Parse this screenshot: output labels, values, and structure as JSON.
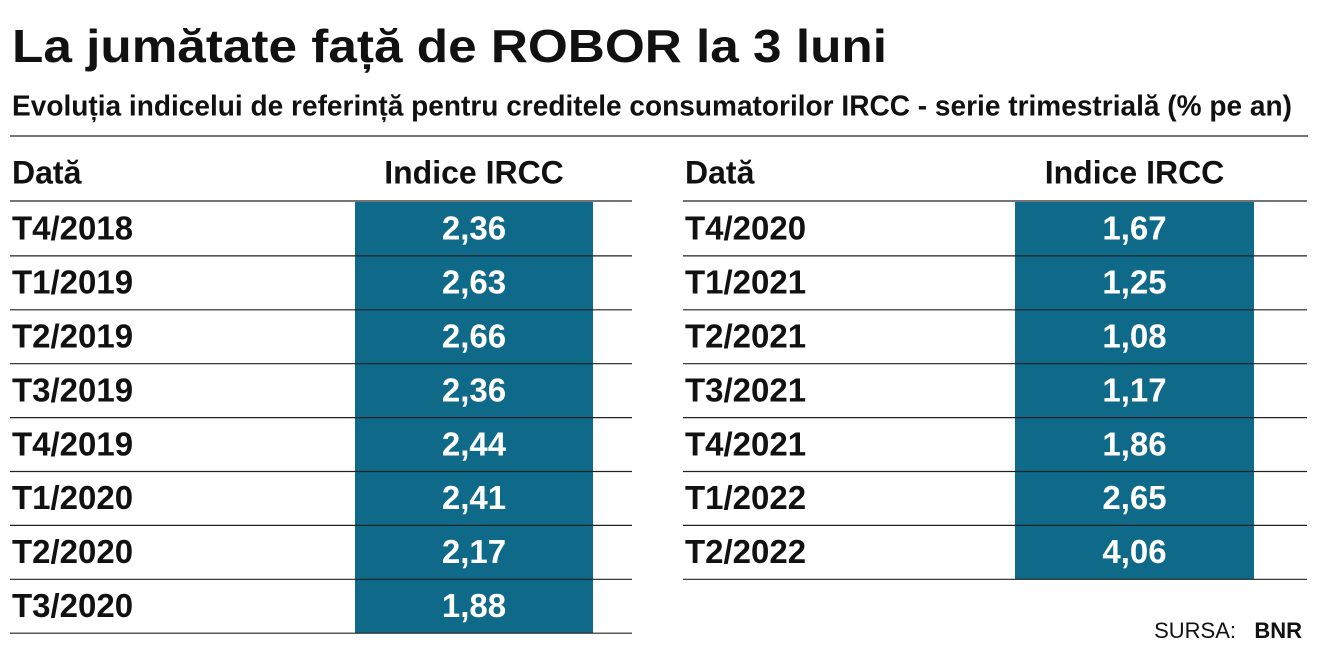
{
  "header": {
    "title": "La jumătate față de ROBOR la 3 luni",
    "subtitle": "Evoluția indicelui de referință pentru creditele consumatorilor IRCC - serie trimestrială (% pe an)"
  },
  "tables": [
    {
      "columns": [
        "Dată",
        "Indice IRCC"
      ],
      "rows": [
        [
          "T4/2018",
          "2,36"
        ],
        [
          "T1/2019",
          "2,63"
        ],
        [
          "T2/2019",
          "2,66"
        ],
        [
          "T3/2019",
          "2,36"
        ],
        [
          "T4/2019",
          "2,44"
        ],
        [
          "T1/2020",
          "2,41"
        ],
        [
          "T2/2020",
          "2,17"
        ],
        [
          "T3/2020",
          "1,88"
        ]
      ]
    },
    {
      "columns": [
        "Dată",
        "Indice IRCC"
      ],
      "rows": [
        [
          "T4/2020",
          "1,67"
        ],
        [
          "T1/2021",
          "1,25"
        ],
        [
          "T2/2021",
          "1,08"
        ],
        [
          "T3/2021",
          "1,17"
        ],
        [
          "T4/2021",
          "1,86"
        ],
        [
          "T1/2022",
          "2,65"
        ],
        [
          "T2/2022",
          "4,06"
        ]
      ]
    }
  ],
  "source": {
    "label": "SURSA:",
    "value": "BNR"
  }
}
